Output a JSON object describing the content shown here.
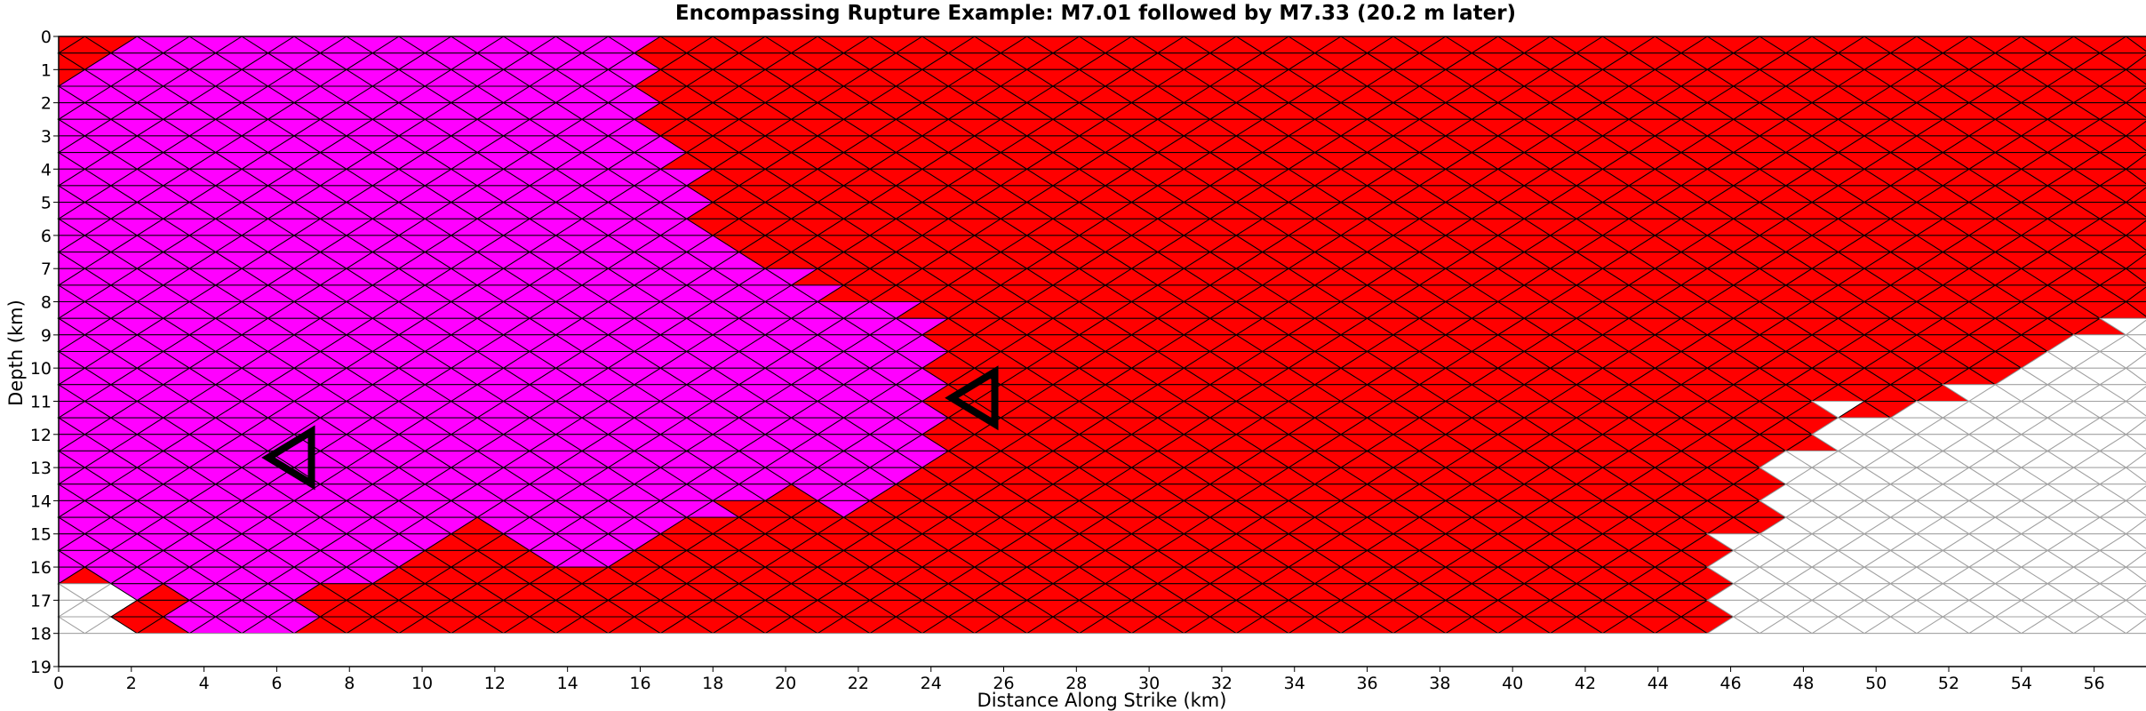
{
  "chart_data": {
    "type": "heatmap",
    "title": "Encompassing Rupture Example: M7.01 followed by M7.33 (20.2 m later)",
    "xlabel": "Distance Along Strike (km)",
    "ylabel": "Depth (km)",
    "xlim": [
      0,
      57.5
    ],
    "ylim": [
      19,
      0
    ],
    "x_ticks": [
      "0",
      "2",
      "4",
      "6",
      "8",
      "10",
      "12",
      "14",
      "16",
      "18",
      "20",
      "22",
      "24",
      "26",
      "28",
      "30",
      "32",
      "34",
      "36",
      "38",
      "40",
      "42",
      "44",
      "46",
      "48",
      "50",
      "52",
      "54",
      "56"
    ],
    "y_ticks": [
      "0",
      "1",
      "2",
      "3",
      "4",
      "5",
      "6",
      "7",
      "8",
      "9",
      "10",
      "11",
      "12",
      "13",
      "14",
      "15",
      "16",
      "17",
      "18",
      "19"
    ],
    "mesh": {
      "x_spacing_km": 1.44,
      "row_height_km": 0.5,
      "depth_extent_km": 18
    },
    "ruptures": [
      {
        "name": "M7.01",
        "color": "#ff00ff",
        "hypocenter": {
          "x_km": 6.5,
          "depth_km": 12.7
        }
      },
      {
        "name": "M7.33",
        "color": "#ff0000",
        "hypocenter": {
          "x_km": 25.3,
          "depth_km": 10.9
        }
      }
    ],
    "colors": {
      "first": "#ff00ff",
      "second": "#ff0000",
      "unruptured": "#ffffff",
      "edge_ruptured": "#000000",
      "edge_unruptured": "#a0a0a0"
    }
  }
}
